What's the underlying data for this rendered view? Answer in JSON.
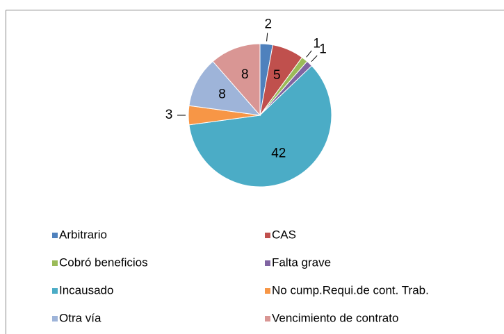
{
  "chart_data": {
    "type": "pie",
    "categories": [
      "Arbitrario",
      "CAS",
      "Cobró beneficios",
      "Falta grave",
      "Incausado",
      "No cump.Requi.de cont. Trab.",
      "Otra vía",
      "Vencimiento de contrato"
    ],
    "values": [
      2,
      5,
      1,
      1,
      42,
      3,
      8,
      8
    ],
    "colors": [
      "#4f81bd",
      "#c0504d",
      "#9bbb59",
      "#8064a2",
      "#4bacc6",
      "#f79646",
      "#9eb4d9",
      "#d99694"
    ],
    "legend": "bottom"
  }
}
